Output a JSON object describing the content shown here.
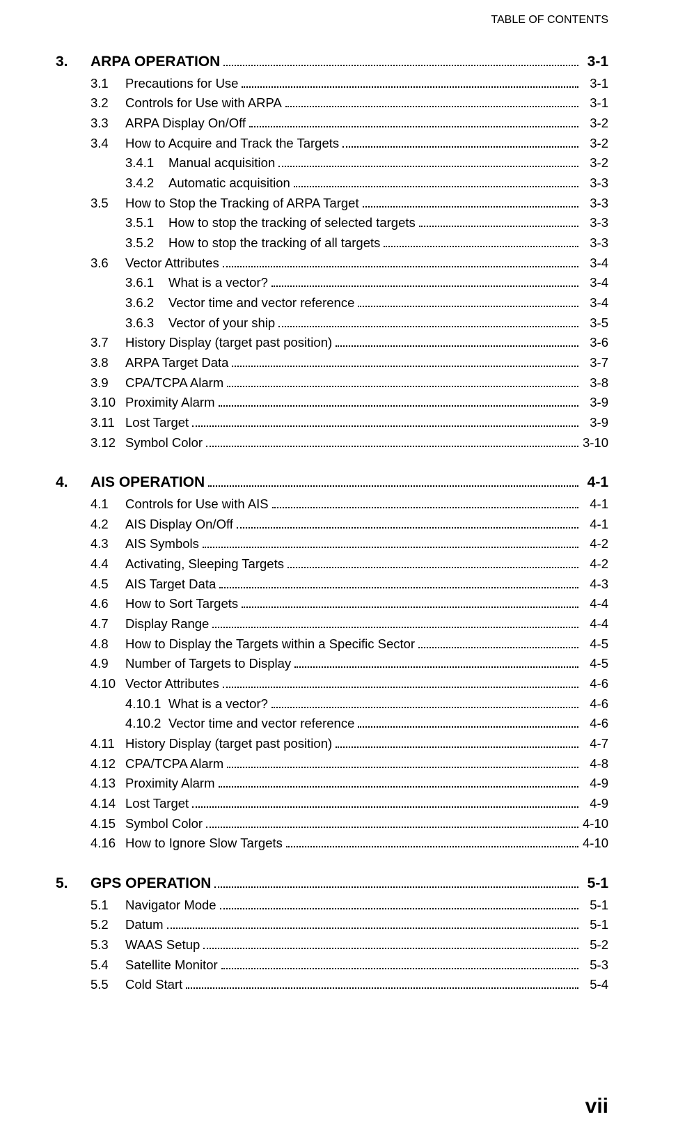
{
  "header": "TABLE OF CONTENTS",
  "footer_page": "vii",
  "colors": {
    "text": "#000000",
    "background": "#ffffff",
    "leader_dots": "#000000"
  },
  "typography": {
    "body_fontsize_pt": 14,
    "chapter_fontsize_pt": 16,
    "chapter_fontweight": "bold",
    "footer_fontsize_pt": 22,
    "footer_fontweight": "bold",
    "font_family": "Arial"
  },
  "sections": [
    {
      "number": "3.",
      "title": "ARPA OPERATION",
      "page": "3-1",
      "entries": [
        {
          "level": 2,
          "number": "3.1",
          "title": "Precautions for Use",
          "page": "3-1"
        },
        {
          "level": 2,
          "number": "3.2",
          "title": "Controls for Use with ARPA",
          "page": "3-1"
        },
        {
          "level": 2,
          "number": "3.3",
          "title": "ARPA Display On/Off",
          "page": "3-2"
        },
        {
          "level": 2,
          "number": "3.4",
          "title": "How to Acquire and Track the Targets",
          "page": "3-2"
        },
        {
          "level": 3,
          "number": "3.4.1",
          "title": "Manual acquisition",
          "page": "3-2"
        },
        {
          "level": 3,
          "number": "3.4.2",
          "title": "Automatic acquisition",
          "page": "3-3"
        },
        {
          "level": 2,
          "number": "3.5",
          "title": "How to Stop the Tracking of ARPA Target",
          "page": "3-3"
        },
        {
          "level": 3,
          "number": "3.5.1",
          "title": "How to stop the tracking of selected targets",
          "page": "3-3"
        },
        {
          "level": 3,
          "number": "3.5.2",
          "title": "How to stop the tracking of all targets",
          "page": "3-3"
        },
        {
          "level": 2,
          "number": "3.6",
          "title": "Vector Attributes",
          "page": "3-4"
        },
        {
          "level": 3,
          "number": "3.6.1",
          "title": "What is a vector?",
          "page": "3-4"
        },
        {
          "level": 3,
          "number": "3.6.2",
          "title": "Vector time and vector reference",
          "page": "3-4"
        },
        {
          "level": 3,
          "number": "3.6.3",
          "title": "Vector of your ship",
          "page": "3-5"
        },
        {
          "level": 2,
          "number": "3.7",
          "title": "History Display (target past position)",
          "page": "3-6"
        },
        {
          "level": 2,
          "number": "3.8",
          "title": "ARPA Target Data",
          "page": "3-7"
        },
        {
          "level": 2,
          "number": "3.9",
          "title": "CPA/TCPA Alarm",
          "page": "3-8"
        },
        {
          "level": 2,
          "number": "3.10",
          "title": "Proximity Alarm",
          "page": "3-9"
        },
        {
          "level": 2,
          "number": "3.11",
          "title": "Lost Target",
          "page": "3-9"
        },
        {
          "level": 2,
          "number": "3.12",
          "title": "Symbol Color",
          "page": "3-10"
        }
      ]
    },
    {
      "number": "4.",
      "title": "AIS OPERATION",
      "page": "4-1",
      "entries": [
        {
          "level": 2,
          "number": "4.1",
          "title": "Controls for Use with AIS",
          "page": "4-1"
        },
        {
          "level": 2,
          "number": "4.2",
          "title": "AIS Display On/Off",
          "page": "4-1"
        },
        {
          "level": 2,
          "number": "4.3",
          "title": "AIS Symbols",
          "page": "4-2"
        },
        {
          "level": 2,
          "number": "4.4",
          "title": "Activating, Sleeping Targets",
          "page": "4-2"
        },
        {
          "level": 2,
          "number": "4.5",
          "title": "AIS Target Data",
          "page": "4-3"
        },
        {
          "level": 2,
          "number": "4.6",
          "title": "How to Sort Targets",
          "page": "4-4"
        },
        {
          "level": 2,
          "number": "4.7",
          "title": "Display Range",
          "page": "4-4"
        },
        {
          "level": 2,
          "number": "4.8",
          "title": "How to Display the Targets within a Specific Sector",
          "page": "4-5"
        },
        {
          "level": 2,
          "number": "4.9",
          "title": "Number of Targets to Display",
          "page": "4-5"
        },
        {
          "level": 2,
          "number": "4.10",
          "title": "Vector Attributes",
          "page": "4-6"
        },
        {
          "level": 3,
          "number": "4.10.1",
          "title": "What is a vector?",
          "page": "4-6"
        },
        {
          "level": 3,
          "number": "4.10.2",
          "title": "Vector time and vector reference",
          "page": "4-6"
        },
        {
          "level": 2,
          "number": "4.11",
          "title": "History Display (target past position)",
          "page": "4-7"
        },
        {
          "level": 2,
          "number": "4.12",
          "title": "CPA/TCPA Alarm",
          "page": "4-8"
        },
        {
          "level": 2,
          "number": "4.13",
          "title": "Proximity Alarm",
          "page": "4-9"
        },
        {
          "level": 2,
          "number": "4.14",
          "title": "Lost Target",
          "page": "4-9"
        },
        {
          "level": 2,
          "number": "4.15",
          "title": "Symbol Color",
          "page": "4-10"
        },
        {
          "level": 2,
          "number": "4.16",
          "title": "How to Ignore Slow Targets",
          "page": "4-10"
        }
      ]
    },
    {
      "number": "5.",
      "title": "GPS OPERATION",
      "page": "5-1",
      "entries": [
        {
          "level": 2,
          "number": "5.1",
          "title": "Navigator Mode",
          "page": "5-1"
        },
        {
          "level": 2,
          "number": "5.2",
          "title": "Datum",
          "page": "5-1"
        },
        {
          "level": 2,
          "number": "5.3",
          "title": "WAAS Setup",
          "page": "5-2"
        },
        {
          "level": 2,
          "number": "5.4",
          "title": "Satellite Monitor",
          "page": "5-3"
        },
        {
          "level": 2,
          "number": "5.5",
          "title": "Cold Start",
          "page": "5-4"
        }
      ]
    }
  ]
}
